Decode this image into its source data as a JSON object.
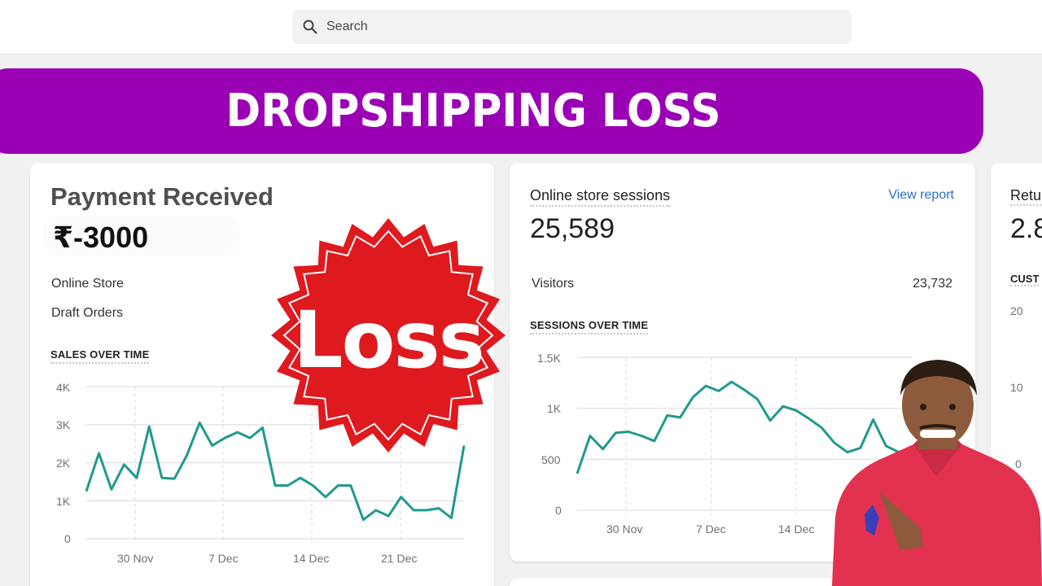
{
  "topbar": {
    "search": {
      "placeholder": "Search",
      "icon": "search-icon"
    }
  },
  "banner": {
    "text": "DROPSHIPPING LOSS",
    "color": "#9a00b4"
  },
  "overlay_badge": {
    "text": "Loss",
    "color": "#de1a1f"
  },
  "payment_card": {
    "title": "Payment Received",
    "value": "₹-3000",
    "rows": [
      {
        "label": "Online Store"
      },
      {
        "label": "Draft Orders"
      }
    ],
    "section_label": "SALES OVER TIME",
    "y_ticks": [
      "4K",
      "3K",
      "2K",
      "1K",
      "0"
    ],
    "x_ticks": [
      "30 Nov",
      "7 Dec",
      "14 Dec",
      "21 Dec"
    ]
  },
  "sessions_card": {
    "title": "Online store sessions",
    "link": "View report",
    "value": "25,589",
    "visitors_label": "Visitors",
    "visitors_value": "23,732",
    "section_label": "SESSIONS OVER TIME",
    "y_ticks": [
      "1.5K",
      "1K",
      "500",
      "0"
    ],
    "x_ticks": [
      "30 Nov",
      "7 Dec",
      "14 Dec"
    ]
  },
  "returning_card": {
    "title": "Retu",
    "value": "2.8",
    "section_label": "CUST",
    "y_ticks": [
      "20",
      "10",
      "0"
    ]
  },
  "colors": {
    "line": "#1f9a8e",
    "grid": "#e4e5e7",
    "link": "#2c6ecb"
  },
  "chart_data": [
    {
      "type": "line",
      "title": "SALES OVER TIME",
      "xlabel": "",
      "ylabel": "",
      "ylim": [
        0,
        4000
      ],
      "x_ticks": [
        "30 Nov",
        "7 Dec",
        "14 Dec",
        "21 Dec"
      ],
      "series": [
        {
          "name": "Sales",
          "values": [
            1250,
            2250,
            1300,
            1950,
            1600,
            2950,
            1600,
            1580,
            2200,
            3050,
            2450,
            2650,
            2800,
            2650,
            2920,
            1400,
            1400,
            1600,
            1400,
            1100,
            1400,
            1400,
            500,
            750,
            600,
            1100,
            750,
            750,
            800,
            550,
            2450
          ]
        }
      ],
      "grid": true
    },
    {
      "type": "line",
      "title": "SESSIONS OVER TIME",
      "xlabel": "",
      "ylabel": "",
      "ylim": [
        0,
        1500
      ],
      "x_ticks": [
        "30 Nov",
        "7 Dec",
        "14 Dec"
      ],
      "series": [
        {
          "name": "Sessions",
          "values": [
            360,
            730,
            600,
            760,
            770,
            730,
            680,
            930,
            910,
            1110,
            1220,
            1170,
            1260,
            1180,
            1090,
            880,
            1020,
            980,
            900,
            810,
            660,
            570,
            610,
            890,
            630,
            570,
            620
          ]
        }
      ],
      "grid": true
    }
  ]
}
